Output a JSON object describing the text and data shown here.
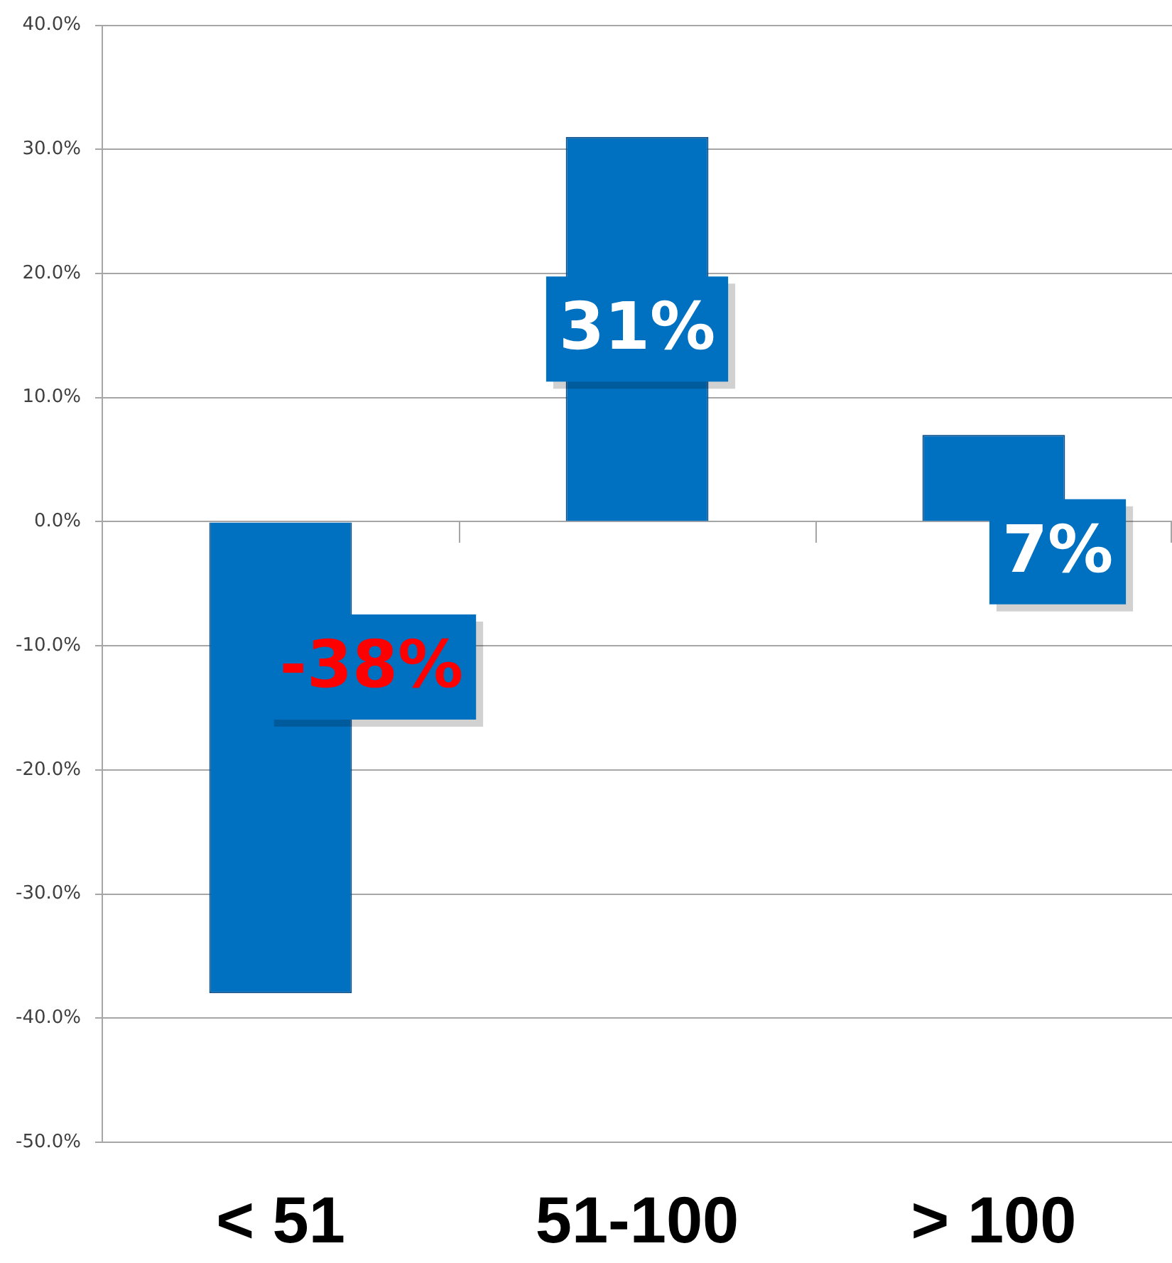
{
  "chart_data": {
    "type": "bar",
    "categories": [
      "< 51",
      "51-100",
      "> 100"
    ],
    "values": [
      -38,
      31,
      7
    ],
    "color": "#0070c0",
    "value_labels": [
      "-38%",
      "31%",
      "7%"
    ],
    "ylim": [
      -50,
      40
    ],
    "yticks": [
      {
        "value": -50,
        "label": "-50.0%"
      },
      {
        "value": -40,
        "label": "-40.0%"
      },
      {
        "value": -30,
        "label": "-30.0%"
      },
      {
        "value": -20,
        "label": "-20.0%"
      },
      {
        "value": -10,
        "label": "-10.0%"
      },
      {
        "value": 0,
        "label": "0.0%"
      },
      {
        "value": 10,
        "label": "10.0%"
      },
      {
        "value": 20,
        "label": "20.0%"
      },
      {
        "value": 30,
        "label": "30.0%"
      },
      {
        "value": 40,
        "label": "40.0%"
      }
    ],
    "grid": "y"
  }
}
